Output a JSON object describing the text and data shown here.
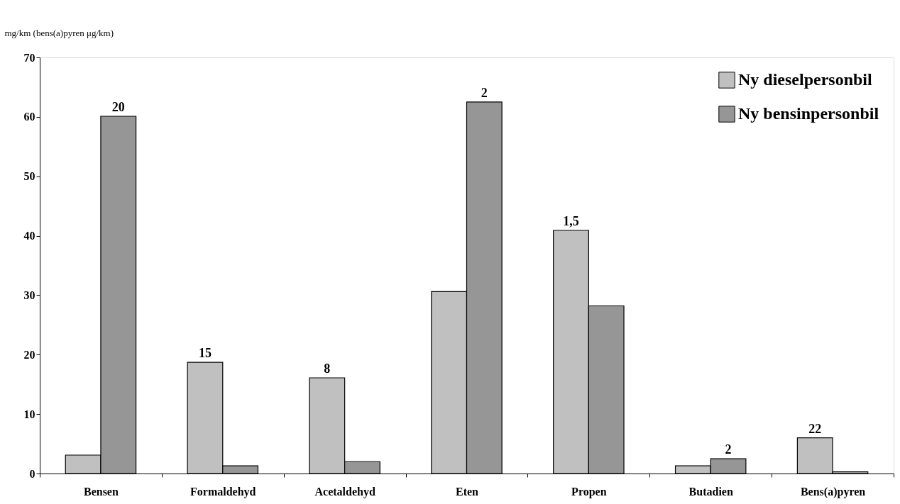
{
  "chart_data": {
    "type": "bar",
    "ylabel": "mg/km (bens(a)pyren μg/km)",
    "categories": [
      "Bensen",
      "Formaldehyd",
      "Acetaldehyd",
      "Eten",
      "Propen",
      "Butadien",
      "Bens(a)pyren"
    ],
    "series": [
      {
        "name": "Ny dieselpersonbil",
        "color": "#c0c0c0",
        "values": [
          3.1,
          18.7,
          16.1,
          30.6,
          40.9,
          1.3,
          6.0
        ]
      },
      {
        "name": "Ny bensinpersonbil",
        "color": "#969696",
        "values": [
          60.1,
          1.3,
          2.0,
          62.5,
          28.2,
          2.5,
          0.3
        ]
      }
    ],
    "annotations": [
      {
        "text": "20",
        "x": "Bensen",
        "y": 60.1
      },
      {
        "text": "15",
        "x": "Formaldehyd",
        "y": 18.7
      },
      {
        "text": "8",
        "x": "Acetaldehyd",
        "y": 16.1
      },
      {
        "text": "2",
        "x": "Eten",
        "y": 62.5
      },
      {
        "text": "1,5",
        "x": "Propen",
        "y": 40.9
      },
      {
        "text": "2",
        "x": "Butadien",
        "y": 2.5
      },
      {
        "text": "22",
        "x": "Bens(a)pyren",
        "y": 6.0
      }
    ],
    "ylim": [
      0,
      70
    ],
    "yticks": [
      0,
      10,
      20,
      30,
      40,
      50,
      60,
      70
    ],
    "grid": false,
    "legend": "top right"
  }
}
